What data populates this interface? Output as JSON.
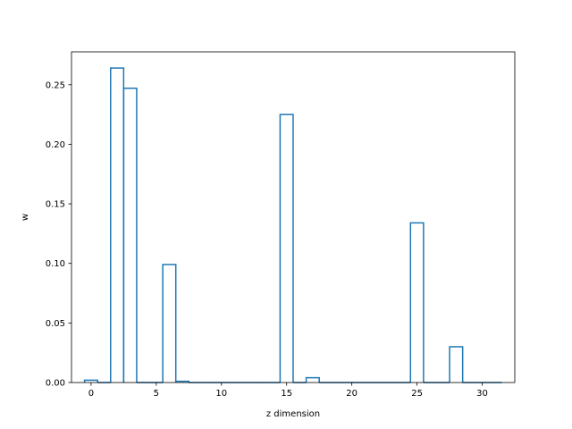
{
  "chart_data": {
    "type": "bar",
    "style": "step-outline",
    "title": "",
    "xlabel": "z dimension",
    "ylabel": "w",
    "xlim": [
      -1.5,
      32.5
    ],
    "ylim": [
      0,
      0.2776
    ],
    "x_ticks": [
      0,
      5,
      10,
      15,
      20,
      25,
      30
    ],
    "y_ticks": [
      0.0,
      0.05,
      0.1,
      0.15,
      0.2,
      0.25
    ],
    "x_tick_labels": [
      "0",
      "5",
      "10",
      "15",
      "20",
      "25",
      "30"
    ],
    "y_tick_labels": [
      "0.00",
      "0.05",
      "0.10",
      "0.15",
      "0.20",
      "0.25"
    ],
    "grid": false,
    "line_color": "#1f77b4",
    "x": [
      0,
      1,
      2,
      3,
      4,
      5,
      6,
      7,
      8,
      9,
      10,
      11,
      12,
      13,
      14,
      15,
      16,
      17,
      18,
      19,
      20,
      21,
      22,
      23,
      24,
      25,
      26,
      27,
      28,
      29,
      30,
      31
    ],
    "values": [
      0.002,
      0,
      0.264,
      0.247,
      0,
      0,
      0.099,
      0.001,
      0,
      0,
      0,
      0,
      0,
      0,
      0,
      0.225,
      0,
      0.004,
      0,
      0,
      0,
      0,
      0,
      0,
      0,
      0.134,
      0,
      0,
      0.03,
      0,
      0,
      0
    ]
  }
}
